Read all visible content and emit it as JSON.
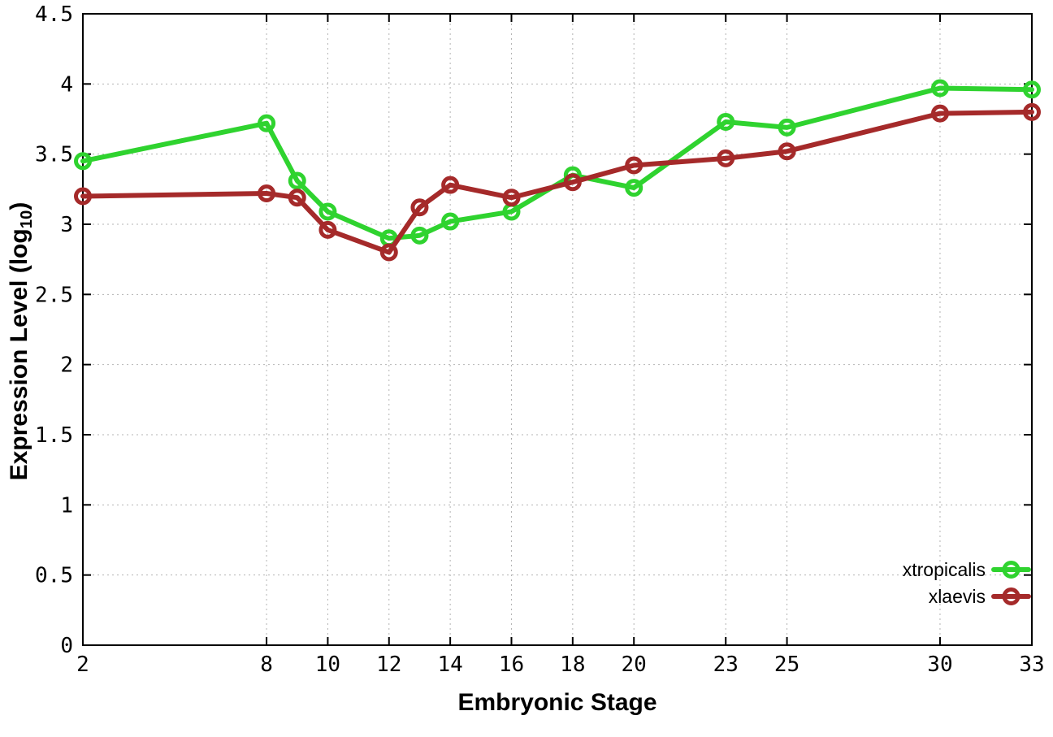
{
  "chart_data": {
    "type": "line",
    "title": "",
    "xlabel": "Embryonic Stage",
    "ylabel": "Expression Level (log10)",
    "ylabel_parts": {
      "main": "Expression Level (log",
      "sub": "10",
      "end": ")"
    },
    "xlim": [
      2,
      33
    ],
    "ylim": [
      0,
      4.5
    ],
    "grid": true,
    "x_ticks": [
      2,
      8,
      10,
      12,
      14,
      16,
      18,
      20,
      23,
      25,
      30,
      33
    ],
    "x_tick_labels": [
      "2",
      "8",
      "10",
      "12",
      "14",
      "16",
      "18",
      "20",
      "23",
      "25",
      "30",
      "33"
    ],
    "y_ticks": [
      0,
      0.5,
      1,
      1.5,
      2,
      2.5,
      3,
      3.5,
      4,
      4.5
    ],
    "y_tick_labels": [
      "0",
      "0.5",
      "1",
      "1.5",
      "2",
      "2.5",
      "3",
      "3.5",
      "4",
      "4.5"
    ],
    "x": [
      2,
      8,
      9,
      10,
      12,
      13,
      14,
      16,
      18,
      20,
      23,
      25,
      30,
      33
    ],
    "series": [
      {
        "name": "xtropicalis",
        "color": "#2fd32f",
        "values": [
          3.45,
          3.72,
          3.31,
          3.09,
          2.9,
          2.92,
          3.02,
          3.09,
          3.35,
          3.26,
          3.73,
          3.69,
          3.97,
          3.96
        ]
      },
      {
        "name": "xlaevis",
        "color": "#a52a2a",
        "values": [
          3.2,
          3.22,
          3.19,
          2.96,
          2.8,
          3.12,
          3.28,
          3.19,
          3.3,
          3.42,
          3.47,
          3.52,
          3.79,
          3.8
        ]
      }
    ],
    "legend_position": "bottom-right",
    "colors": {
      "grid": "#b3b3b3",
      "border": "#000000",
      "text": "#000000",
      "background": "#ffffff"
    }
  }
}
